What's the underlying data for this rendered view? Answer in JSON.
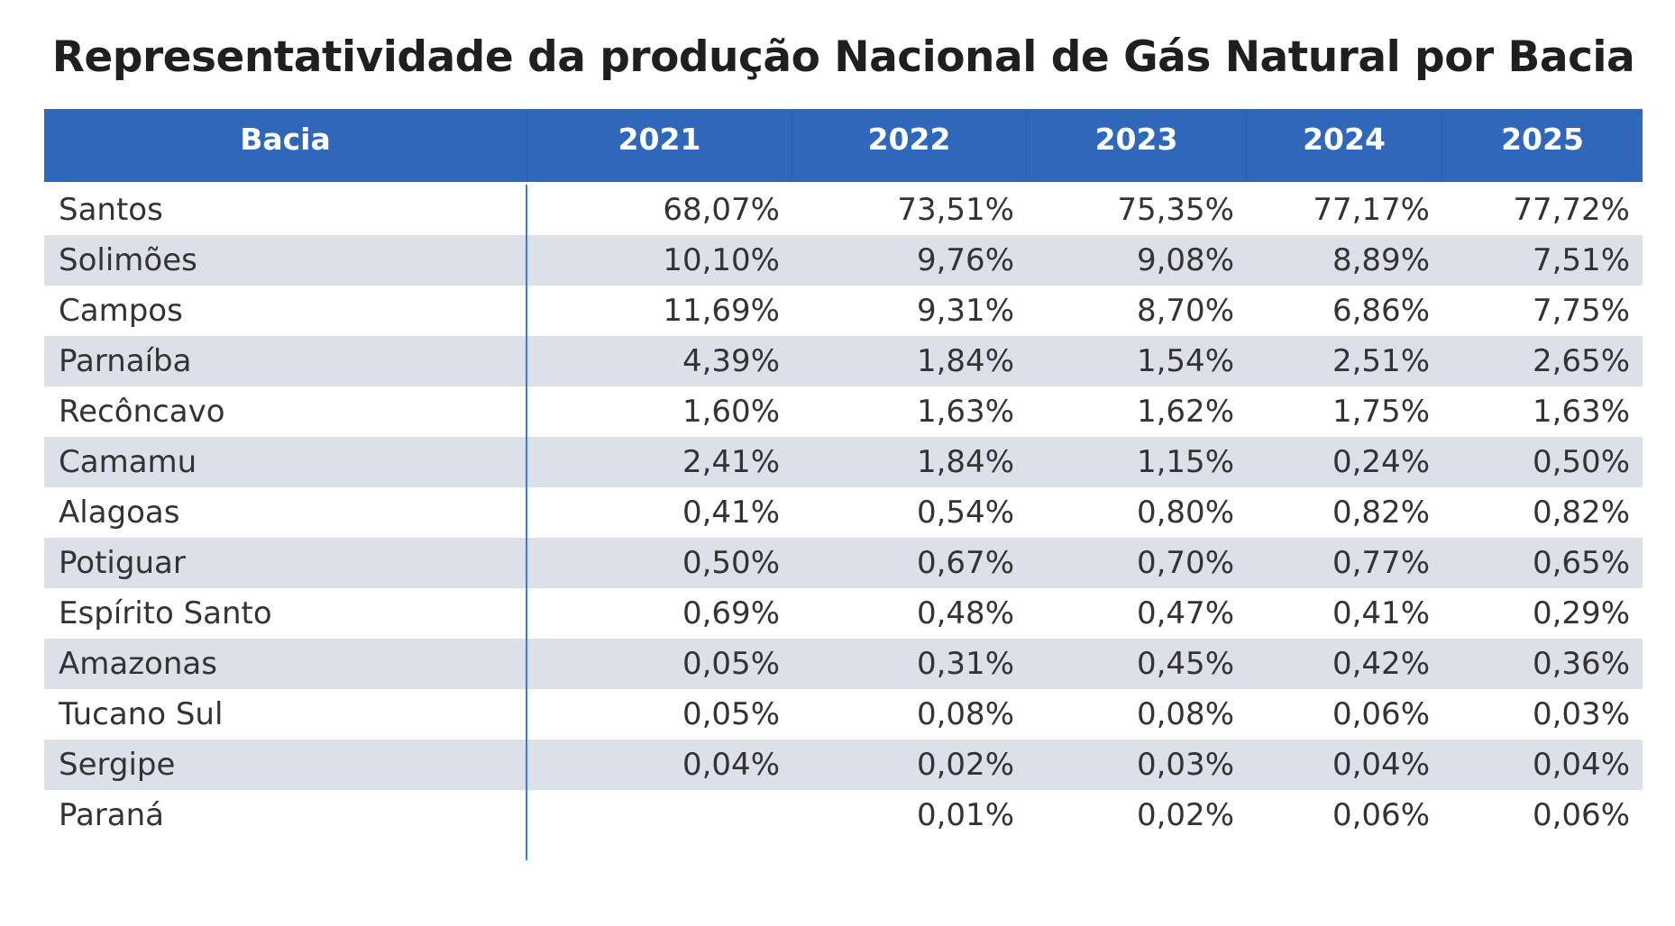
{
  "title": "Representatividade da produção Nacional de Gás Natural por Bacia",
  "colors": {
    "header_bg": "#2F67BA",
    "stripe_bg": "#DCE0E8",
    "divider": "#3A7FE0"
  },
  "columns": [
    "Bacia",
    "2021",
    "2022",
    "2023",
    "2024",
    "2025"
  ],
  "rows": [
    {
      "bacia": "Santos",
      "values": [
        "68,07%",
        "73,51%",
        "75,35%",
        "77,17%",
        "77,72%"
      ]
    },
    {
      "bacia": "Solimões",
      "values": [
        "10,10%",
        "9,76%",
        "9,08%",
        "8,89%",
        "7,51%"
      ]
    },
    {
      "bacia": "Campos",
      "values": [
        "11,69%",
        "9,31%",
        "8,70%",
        "6,86%",
        "7,75%"
      ]
    },
    {
      "bacia": "Parnaíba",
      "values": [
        "4,39%",
        "1,84%",
        "1,54%",
        "2,51%",
        "2,65%"
      ]
    },
    {
      "bacia": "Recôncavo",
      "values": [
        "1,60%",
        "1,63%",
        "1,62%",
        "1,75%",
        "1,63%"
      ]
    },
    {
      "bacia": "Camamu",
      "values": [
        "2,41%",
        "1,84%",
        "1,15%",
        "0,24%",
        "0,50%"
      ]
    },
    {
      "bacia": "Alagoas",
      "values": [
        "0,41%",
        "0,54%",
        "0,80%",
        "0,82%",
        "0,82%"
      ]
    },
    {
      "bacia": "Potiguar",
      "values": [
        "0,50%",
        "0,67%",
        "0,70%",
        "0,77%",
        "0,65%"
      ]
    },
    {
      "bacia": "Espírito Santo",
      "values": [
        "0,69%",
        "0,48%",
        "0,47%",
        "0,41%",
        "0,29%"
      ]
    },
    {
      "bacia": "Amazonas",
      "values": [
        "0,05%",
        "0,31%",
        "0,45%",
        "0,42%",
        "0,36%"
      ]
    },
    {
      "bacia": "Tucano Sul",
      "values": [
        "0,05%",
        "0,08%",
        "0,08%",
        "0,06%",
        "0,03%"
      ]
    },
    {
      "bacia": "Sergipe",
      "values": [
        "0,04%",
        "0,02%",
        "0,03%",
        "0,04%",
        "0,04%"
      ]
    },
    {
      "bacia": "Paraná",
      "values": [
        "",
        "0,01%",
        "0,02%",
        "0,06%",
        "0,06%"
      ]
    }
  ]
}
